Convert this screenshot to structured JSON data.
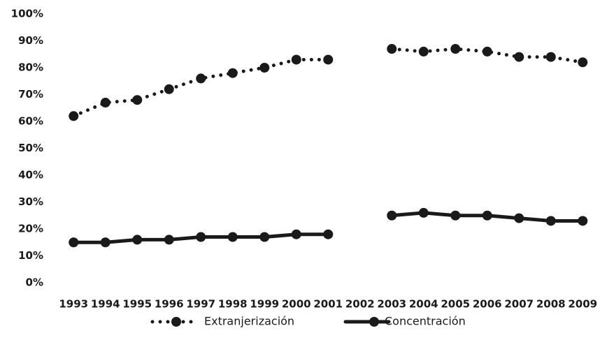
{
  "chart_data": {
    "type": "line",
    "categories": [
      "1993",
      "1994",
      "1995",
      "1996",
      "1997",
      "1998",
      "1999",
      "2000",
      "2001",
      "2002",
      "2003",
      "2004",
      "2005",
      "2006",
      "2007",
      "2008",
      "2009"
    ],
    "series": [
      {
        "name": "Extranjerización",
        "color": "#1a1a1a",
        "line_style": "dotted",
        "values": [
          62,
          67,
          68,
          72,
          76,
          78,
          80,
          83,
          83,
          null,
          87,
          86,
          87,
          86,
          84,
          84,
          82
        ]
      },
      {
        "name": "Concentración",
        "color": "#1a1a1a",
        "line_style": "solid",
        "values": [
          15,
          15,
          16,
          16,
          17,
          17,
          17,
          18,
          18,
          null,
          25,
          26,
          25,
          25,
          24,
          23,
          23
        ]
      }
    ],
    "ylim": [
      0,
      100
    ],
    "yticks": [
      {
        "value": 0,
        "label": "0%"
      },
      {
        "value": 10,
        "label": "10%"
      },
      {
        "value": 20,
        "label": "20%"
      },
      {
        "value": 30,
        "label": "30%"
      },
      {
        "value": 40,
        "label": "40%"
      },
      {
        "value": 50,
        "label": "50%"
      },
      {
        "value": 60,
        "label": "60%"
      },
      {
        "value": 70,
        "label": "70%"
      },
      {
        "value": 80,
        "label": "80%"
      },
      {
        "value": 90,
        "label": "90%"
      },
      {
        "value": 100,
        "label": "100%"
      }
    ],
    "legend": "bottom"
  }
}
